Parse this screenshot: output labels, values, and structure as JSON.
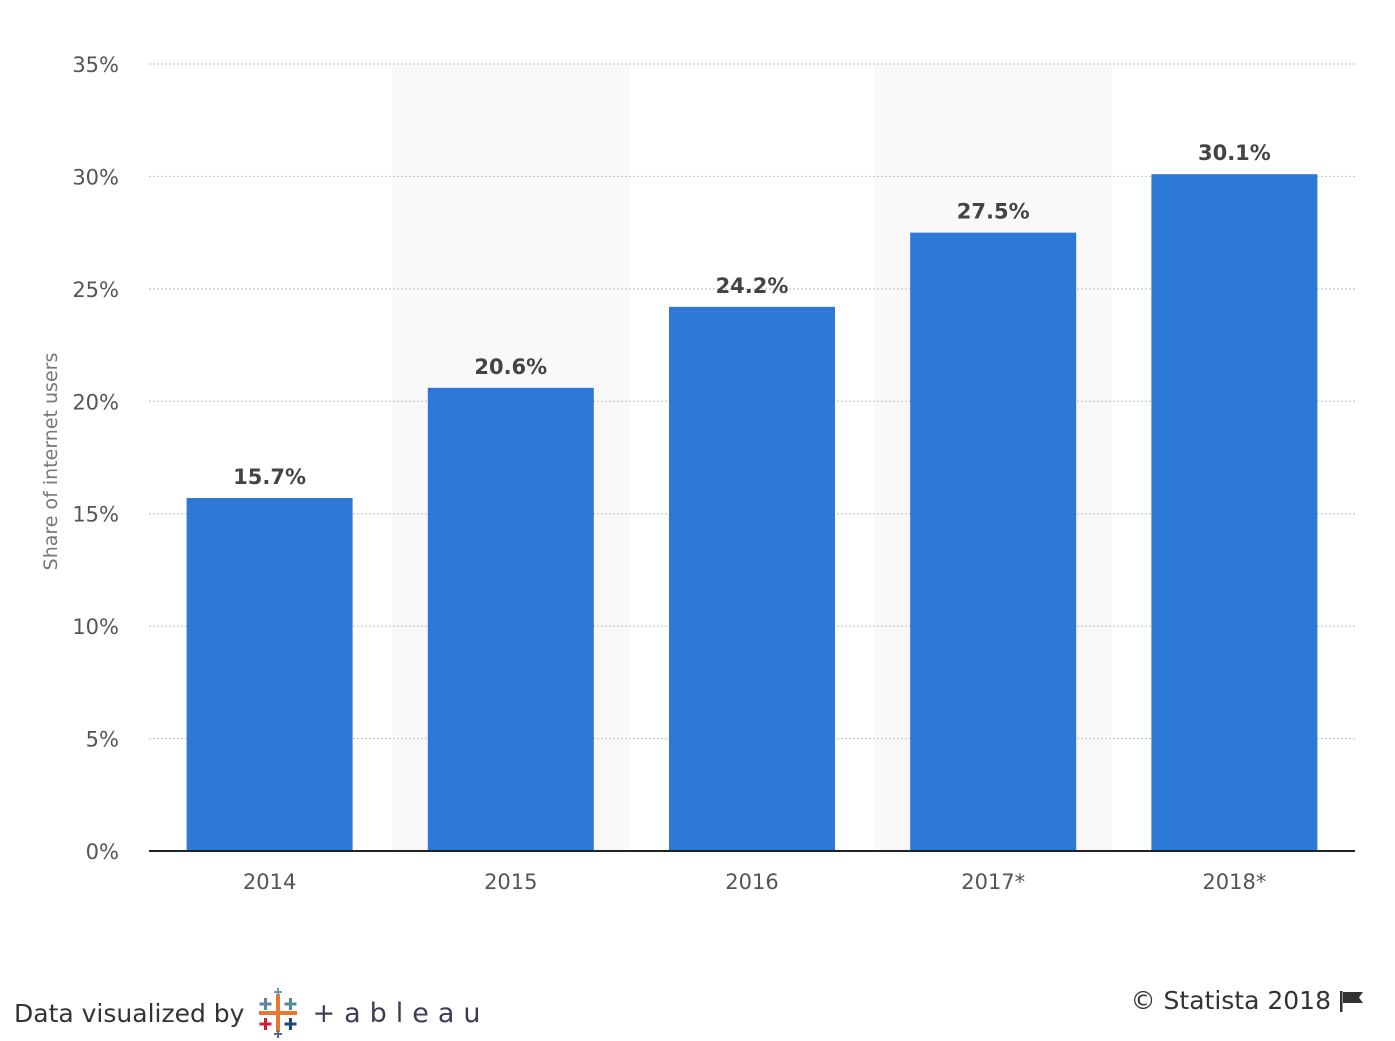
{
  "chart_data": {
    "type": "bar",
    "categories": [
      "2014",
      "2015",
      "2016",
      "2017*",
      "2018*"
    ],
    "values": [
      15.7,
      20.6,
      24.2,
      27.5,
      30.1
    ],
    "data_labels": [
      "15.7%",
      "20.6%",
      "24.2%",
      "27.5%",
      "30.1%"
    ],
    "ylabel": "Share of internet users",
    "ylim": [
      0,
      35
    ],
    "yticks": [
      0,
      5,
      10,
      15,
      20,
      25,
      30,
      35
    ],
    "ytick_labels": [
      "0%",
      "5%",
      "10%",
      "15%",
      "20%",
      "25%",
      "30%",
      "35%"
    ],
    "grid": true,
    "bar_color": "#2e78d8",
    "alt_band_color": "#f9f9f9"
  },
  "footer": {
    "credit_text": "Data visualized by",
    "logo_text": "+ableau",
    "copyright": "© Statista 2018",
    "flag_icon": "flag-icon"
  }
}
